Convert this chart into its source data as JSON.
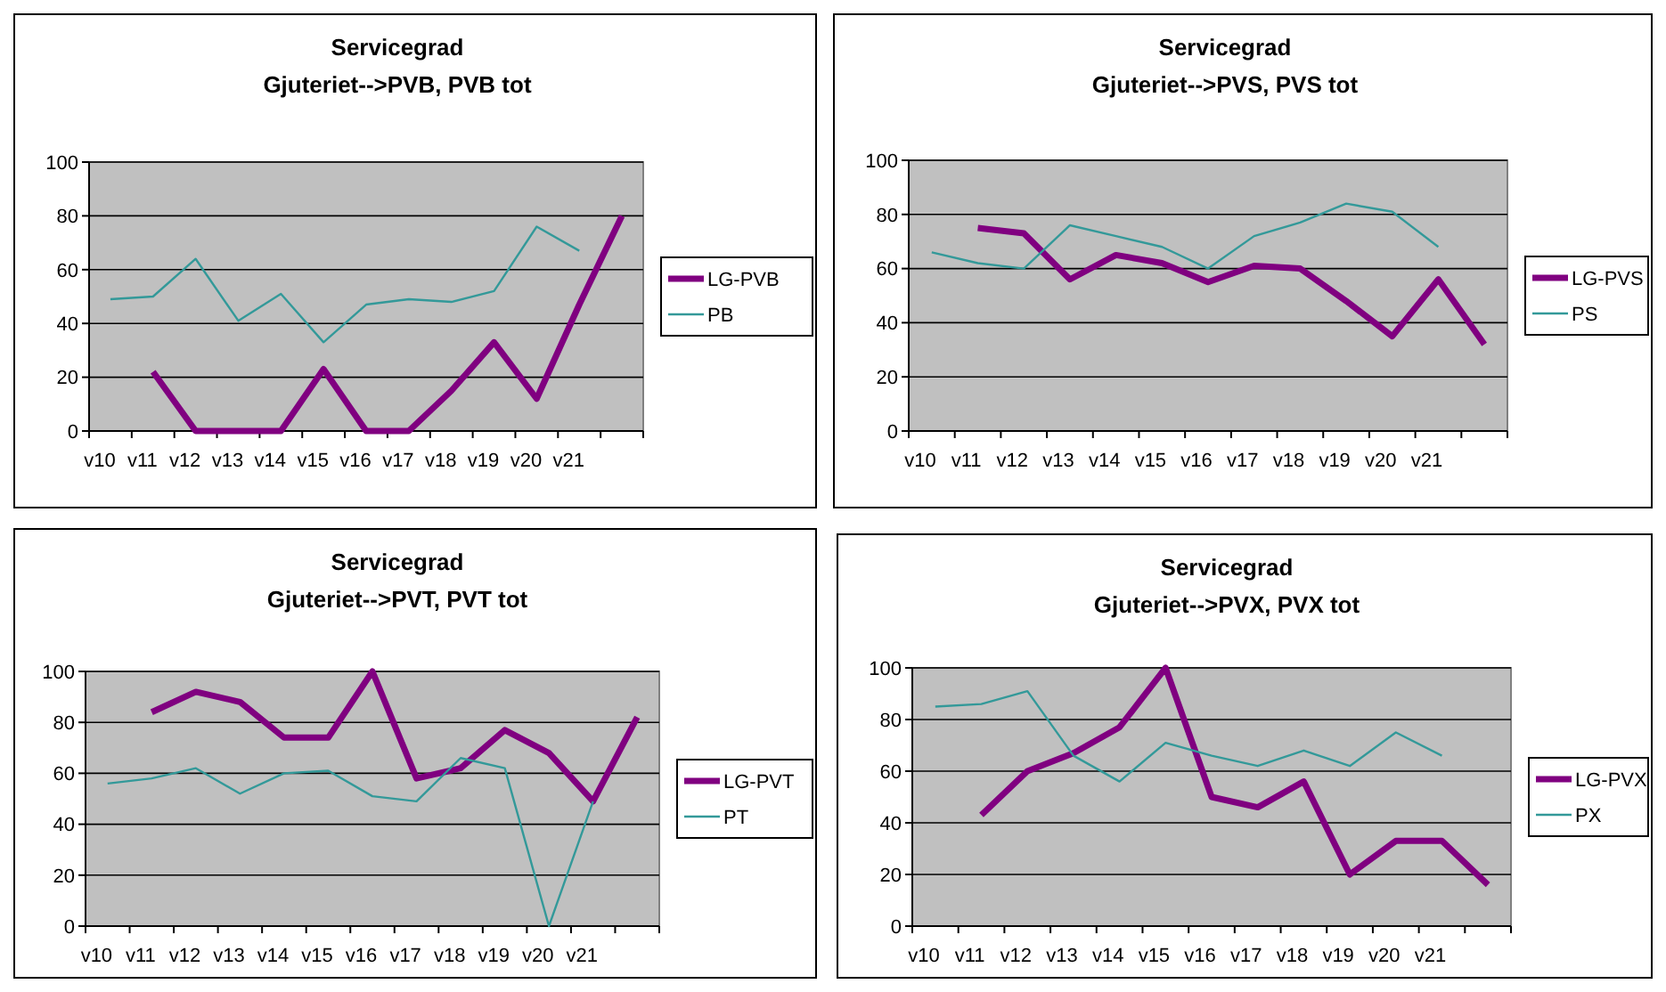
{
  "chart_data": [
    {
      "type": "line",
      "title": "Servicegrad",
      "subtitle": "Gjuteriet-->PVB, PVB tot",
      "categories": [
        "v10",
        "v11",
        "v12",
        "v13",
        "v14",
        "v15",
        "v16",
        "v17",
        "v18",
        "v19",
        "v20",
        "v21",
        null
      ],
      "ylim": [
        0,
        100
      ],
      "yticks": [
        0,
        20,
        40,
        60,
        80,
        100
      ],
      "grid": "y",
      "legend": "right",
      "marker": "none",
      "series": [
        {
          "name": "LG-PVB",
          "color": "#800080",
          "values": [
            null,
            22,
            0,
            0,
            0,
            23,
            0,
            0,
            15,
            33,
            12,
            47,
            80
          ]
        },
        {
          "name": "PB",
          "color": "#339999",
          "values": [
            49,
            50,
            64,
            41,
            51,
            33,
            47,
            49,
            48,
            52,
            76,
            67,
            null
          ]
        }
      ]
    },
    {
      "type": "line",
      "title": "Servicegrad",
      "subtitle": "Gjuteriet-->PVS, PVS tot",
      "categories": [
        "v10",
        "v11",
        "v12",
        "v13",
        "v14",
        "v15",
        "v16",
        "v17",
        "v18",
        "v19",
        "v20",
        "v21",
        null
      ],
      "ylim": [
        0,
        100
      ],
      "yticks": [
        0,
        20,
        40,
        60,
        80,
        100
      ],
      "grid": "y",
      "legend": "right",
      "marker": "none",
      "series": [
        {
          "name": "LG-PVS",
          "color": "#800080",
          "values": [
            null,
            75,
            73,
            56,
            65,
            62,
            55,
            61,
            60,
            48,
            35,
            56,
            32
          ]
        },
        {
          "name": "PS",
          "color": "#339999",
          "values": [
            66,
            62,
            60,
            76,
            72,
            68,
            60,
            72,
            77,
            84,
            81,
            68,
            null
          ]
        }
      ]
    },
    {
      "type": "line",
      "title": "Servicegrad",
      "subtitle": "Gjuteriet-->PVT, PVT tot",
      "categories": [
        "v10",
        "v11",
        "v12",
        "v13",
        "v14",
        "v15",
        "v16",
        "v17",
        "v18",
        "v19",
        "v20",
        "v21",
        null
      ],
      "ylim": [
        0,
        100
      ],
      "yticks": [
        0,
        20,
        40,
        60,
        80,
        100
      ],
      "grid": "y",
      "legend": "right",
      "marker": "none",
      "series": [
        {
          "name": "LG-PVT",
          "color": "#800080",
          "values": [
            null,
            84,
            92,
            88,
            74,
            74,
            100,
            58,
            62,
            77,
            68,
            49,
            82
          ]
        },
        {
          "name": "PT",
          "color": "#339999",
          "values": [
            56,
            58,
            62,
            52,
            60,
            61,
            51,
            49,
            66,
            62,
            0,
            49,
            null
          ]
        }
      ]
    },
    {
      "type": "line",
      "title": "Servicegrad",
      "subtitle": "Gjuteriet-->PVX, PVX tot",
      "categories": [
        "v10",
        "v11",
        "v12",
        "v13",
        "v14",
        "v15",
        "v16",
        "v17",
        "v18",
        "v19",
        "v20",
        "v21",
        null
      ],
      "ylim": [
        0,
        100
      ],
      "yticks": [
        0,
        20,
        40,
        60,
        80,
        100
      ],
      "grid": "y",
      "legend": "right",
      "marker": "none",
      "series": [
        {
          "name": "LG-PVX",
          "color": "#800080",
          "values": [
            null,
            43,
            60,
            67,
            77,
            100,
            50,
            46,
            56,
            20,
            33,
            33,
            16
          ]
        },
        {
          "name": "PX",
          "color": "#339999",
          "values": [
            85,
            86,
            91,
            66,
            56,
            71,
            66,
            62,
            68,
            62,
            75,
            66,
            null
          ]
        }
      ]
    }
  ]
}
